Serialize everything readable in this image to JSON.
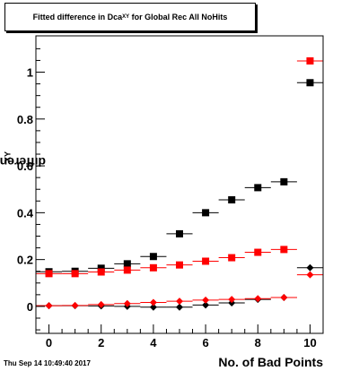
{
  "title": {
    "main": "Fitted difference in Dca",
    "sub": "XY",
    "suffix": " for Global Rec All NoHits"
  },
  "ylabel": {
    "main": "difference in Dca",
    "sub": "XY"
  },
  "xlabel": "No. of Bad Points",
  "timestamp": "Thu Sep 14 10:49:40 2017",
  "chart_data": {
    "type": "scatter",
    "xlim": [
      -0.5,
      10.5
    ],
    "ylim": [
      -0.115,
      1.155
    ],
    "xticks": [
      0,
      2,
      4,
      6,
      8,
      10
    ],
    "yticks": [
      0,
      0.2,
      0.4,
      0.6,
      0.8,
      1
    ],
    "ytick_labels": [
      "0",
      "0.2",
      "0.4",
      "0.6",
      "0.8",
      "1"
    ],
    "grid": false,
    "series": [
      {
        "marker": "square",
        "color": "#000000",
        "x": [
          0,
          1,
          2,
          3,
          4,
          5,
          6,
          7,
          8,
          9,
          10
        ],
        "y": [
          0.148,
          0.15,
          0.163,
          0.182,
          0.213,
          0.31,
          0.4,
          0.455,
          0.507,
          0.532,
          0.955
        ]
      },
      {
        "marker": "square",
        "color": "#ff0000",
        "x": [
          0,
          1,
          2,
          3,
          4,
          5,
          6,
          7,
          8,
          9,
          10
        ],
        "y": [
          0.14,
          0.14,
          0.147,
          0.155,
          0.165,
          0.177,
          0.193,
          0.208,
          0.231,
          0.243,
          1.048
        ]
      },
      {
        "marker": "diamond",
        "color": "#000000",
        "x": [
          0,
          1,
          2,
          3,
          4,
          5,
          6,
          7,
          8,
          9,
          10
        ],
        "y": [
          0.003,
          0.003,
          0.002,
          0.0,
          -0.003,
          -0.003,
          0.006,
          0.015,
          0.03,
          0.038,
          0.165
        ]
      },
      {
        "marker": "diamond",
        "color": "#ff0000",
        "x": [
          0,
          1,
          2,
          3,
          4,
          5,
          6,
          7,
          8,
          9,
          10
        ],
        "y": [
          0.003,
          0.004,
          0.008,
          0.012,
          0.017,
          0.022,
          0.027,
          0.03,
          0.033,
          0.038,
          0.135
        ]
      }
    ]
  }
}
